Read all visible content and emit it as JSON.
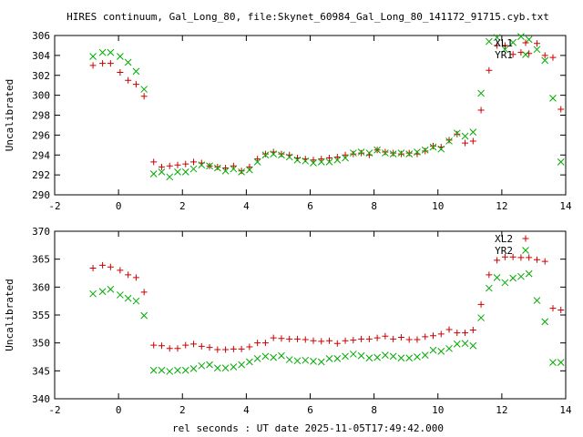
{
  "chart_data": [
    {
      "type": "scatter",
      "title": "HIRES continuum, Gal_Long_80, file:Skynet_60984_Gal_Long_80_141172_91715.cyb.txt",
      "ylabel": "Uncalibrated",
      "xlabel": "",
      "xlim": [
        -2,
        14
      ],
      "ylim": [
        290,
        306
      ],
      "xticks": [
        -2,
        0,
        2,
        4,
        6,
        8,
        10,
        12,
        14
      ],
      "yticks": [
        290,
        292,
        294,
        296,
        298,
        300,
        302,
        304,
        306
      ],
      "grid": false,
      "legend_position": "top-right",
      "series": [
        {
          "name": "XL1",
          "color": "#cc0000",
          "marker": "plus",
          "x": [
            -0.8,
            -0.5,
            -0.25,
            0.05,
            0.3,
            0.55,
            0.8,
            1.1,
            1.35,
            1.6,
            1.85,
            2.1,
            2.35,
            2.6,
            2.85,
            3.1,
            3.35,
            3.6,
            3.85,
            4.1,
            4.35,
            4.6,
            4.85,
            5.1,
            5.35,
            5.6,
            5.85,
            6.1,
            6.35,
            6.6,
            6.85,
            7.1,
            7.35,
            7.6,
            7.85,
            8.1,
            8.35,
            8.6,
            8.85,
            9.1,
            9.35,
            9.6,
            9.85,
            10.1,
            10.35,
            10.6,
            10.85,
            11.1,
            11.35,
            11.6,
            11.85,
            12.1,
            12.35,
            12.6,
            12.85,
            13.1,
            13.35,
            13.6,
            13.85
          ],
          "y": [
            303.0,
            303.2,
            303.2,
            302.3,
            301.5,
            301.1,
            299.9,
            293.3,
            292.8,
            292.9,
            293.0,
            293.1,
            293.3,
            293.2,
            292.9,
            292.8,
            292.7,
            292.9,
            292.4,
            292.8,
            293.6,
            294.1,
            294.3,
            294.1,
            294.0,
            293.7,
            293.6,
            293.5,
            293.6,
            293.7,
            293.8,
            294.0,
            294.1,
            294.2,
            294.0,
            294.5,
            294.3,
            294.2,
            294.1,
            294.2,
            294.1,
            294.4,
            294.9,
            294.8,
            295.5,
            296.1,
            295.2,
            295.4,
            298.5,
            302.5,
            305.0,
            305.0,
            304.1,
            304.3,
            304.2,
            305.2,
            304.0,
            303.8,
            298.6
          ]
        },
        {
          "name": "YR1",
          "color": "#00aa00",
          "marker": "cross",
          "x": [
            -0.8,
            -0.5,
            -0.25,
            0.05,
            0.3,
            0.55,
            0.8,
            1.1,
            1.35,
            1.6,
            1.85,
            2.1,
            2.35,
            2.6,
            2.85,
            3.1,
            3.35,
            3.6,
            3.85,
            4.1,
            4.35,
            4.6,
            4.85,
            5.1,
            5.35,
            5.6,
            5.85,
            6.1,
            6.35,
            6.6,
            6.85,
            7.1,
            7.35,
            7.6,
            7.85,
            8.1,
            8.35,
            8.6,
            8.85,
            9.1,
            9.35,
            9.6,
            9.85,
            10.1,
            10.35,
            10.6,
            10.85,
            11.1,
            11.35,
            11.6,
            11.85,
            12.1,
            12.35,
            12.6,
            12.85,
            13.1,
            13.35,
            13.6,
            13.85
          ],
          "y": [
            303.9,
            304.3,
            304.3,
            303.9,
            303.3,
            302.4,
            300.6,
            292.1,
            292.3,
            291.8,
            292.3,
            292.3,
            292.6,
            293.0,
            292.9,
            292.7,
            292.4,
            292.6,
            292.3,
            292.5,
            293.3,
            294.0,
            294.1,
            294.0,
            293.8,
            293.5,
            293.4,
            293.2,
            293.3,
            293.3,
            293.5,
            293.7,
            294.2,
            294.3,
            294.2,
            294.5,
            294.2,
            294.1,
            294.2,
            294.1,
            294.3,
            294.5,
            294.8,
            294.6,
            295.4,
            296.2,
            295.9,
            296.3,
            300.2,
            305.4,
            305.8,
            304.6,
            305.3,
            305.9,
            305.6,
            304.6,
            303.5,
            299.7,
            293.3
          ]
        }
      ]
    },
    {
      "type": "scatter",
      "title": "",
      "ylabel": "Uncalibrated",
      "xlabel": "rel seconds : UT date 2025-11-05T17:49:42.000",
      "xlim": [
        -2,
        14
      ],
      "ylim": [
        340,
        370
      ],
      "xticks": [
        -2,
        0,
        2,
        4,
        6,
        8,
        10,
        12,
        14
      ],
      "yticks": [
        340,
        345,
        350,
        355,
        360,
        365,
        370
      ],
      "grid": false,
      "legend_position": "top-right",
      "series": [
        {
          "name": "XL2",
          "color": "#cc0000",
          "marker": "plus",
          "x": [
            -0.8,
            -0.5,
            -0.25,
            0.05,
            0.3,
            0.55,
            0.8,
            1.1,
            1.35,
            1.6,
            1.85,
            2.1,
            2.35,
            2.6,
            2.85,
            3.1,
            3.35,
            3.6,
            3.85,
            4.1,
            4.35,
            4.6,
            4.85,
            5.1,
            5.35,
            5.6,
            5.85,
            6.1,
            6.35,
            6.6,
            6.85,
            7.1,
            7.35,
            7.6,
            7.85,
            8.1,
            8.35,
            8.6,
            8.85,
            9.1,
            9.35,
            9.6,
            9.85,
            10.1,
            10.35,
            10.6,
            10.85,
            11.1,
            11.35,
            11.6,
            11.85,
            12.1,
            12.35,
            12.6,
            12.85,
            13.1,
            13.35,
            13.6,
            13.85
          ],
          "y": [
            363.4,
            363.9,
            363.6,
            363.0,
            362.2,
            361.7,
            359.1,
            349.6,
            349.5,
            349.0,
            349.0,
            349.6,
            349.8,
            349.4,
            349.2,
            348.8,
            348.8,
            348.9,
            348.9,
            349.3,
            350.0,
            350.0,
            350.9,
            350.8,
            350.7,
            350.7,
            350.6,
            350.4,
            350.3,
            350.4,
            349.9,
            350.4,
            350.5,
            350.7,
            350.7,
            350.9,
            351.2,
            350.7,
            351.0,
            350.6,
            350.6,
            351.1,
            351.3,
            351.6,
            352.4,
            351.8,
            351.8,
            352.3,
            356.9,
            362.2,
            364.8,
            365.4,
            365.4,
            365.3,
            365.3,
            364.9,
            364.6,
            356.2,
            355.9
          ]
        },
        {
          "name": "YR2",
          "color": "#00aa00",
          "marker": "cross",
          "x": [
            -0.8,
            -0.5,
            -0.25,
            0.05,
            0.3,
            0.55,
            0.8,
            1.1,
            1.35,
            1.6,
            1.85,
            2.1,
            2.35,
            2.6,
            2.85,
            3.1,
            3.35,
            3.6,
            3.85,
            4.1,
            4.35,
            4.6,
            4.85,
            5.1,
            5.35,
            5.6,
            5.85,
            6.1,
            6.35,
            6.6,
            6.85,
            7.1,
            7.35,
            7.6,
            7.85,
            8.1,
            8.35,
            8.6,
            8.85,
            9.1,
            9.35,
            9.6,
            9.85,
            10.1,
            10.35,
            10.6,
            10.85,
            11.1,
            11.35,
            11.6,
            11.85,
            12.1,
            12.35,
            12.6,
            12.85,
            13.1,
            13.35,
            13.6,
            13.85
          ],
          "y": [
            358.8,
            359.2,
            359.6,
            358.6,
            358.0,
            357.5,
            354.9,
            345.1,
            345.1,
            344.9,
            345.1,
            345.1,
            345.4,
            345.9,
            346.1,
            345.5,
            345.5,
            345.7,
            346.1,
            346.6,
            347.2,
            347.6,
            347.4,
            347.7,
            347.0,
            346.8,
            346.9,
            346.7,
            346.6,
            347.2,
            347.2,
            347.6,
            348.0,
            347.7,
            347.3,
            347.4,
            347.8,
            347.6,
            347.3,
            347.3,
            347.5,
            347.8,
            348.7,
            348.5,
            349.0,
            349.8,
            349.9,
            349.5,
            354.5,
            359.8,
            361.7,
            360.8,
            361.6,
            361.9,
            362.4,
            357.6,
            353.8,
            346.5,
            346.5
          ]
        }
      ]
    }
  ]
}
